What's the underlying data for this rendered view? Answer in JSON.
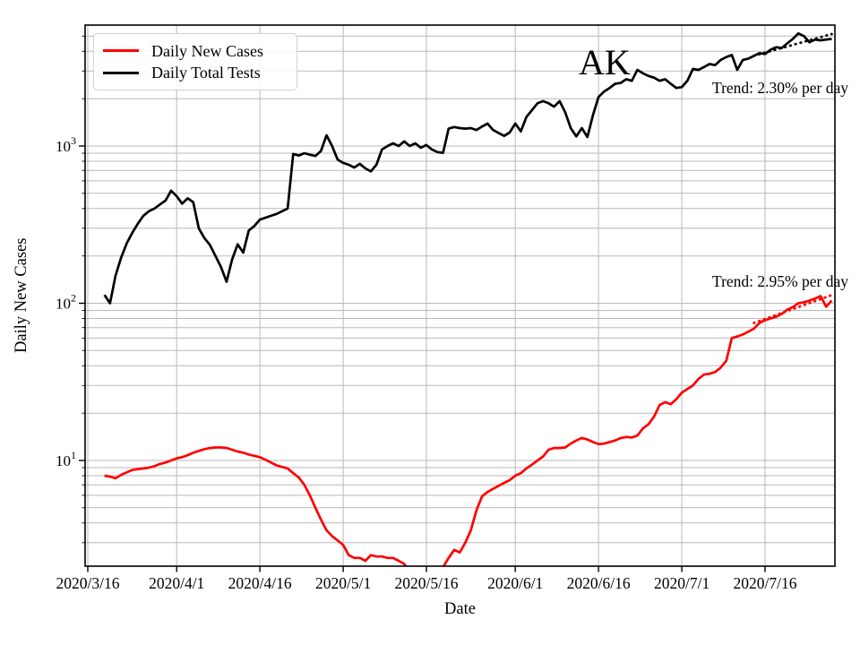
{
  "figure": {
    "title": "AK",
    "annotations": {
      "trend_tests": "Trend: 2.30% per day",
      "trend_cases": "Trend: 2.95% per day"
    },
    "legend": {
      "items": [
        {
          "label": "Daily New Cases",
          "color": "#ff0000"
        },
        {
          "label": "Daily Total Tests",
          "color": "#000000"
        }
      ]
    }
  },
  "colors": {
    "cases": "#ff0000",
    "tests": "#000000",
    "grid": "#b9b9b9",
    "axis": "#000000",
    "legend_border": "#d2d2d2"
  },
  "chart_data": {
    "type": "line",
    "title": "AK",
    "xlabel": "Date",
    "ylabel": "Daily New Cases",
    "y_scale": "log",
    "ylim": [
      2.1,
      5900
    ],
    "grid": true,
    "legend_position": "upper left",
    "x_tick_labels": [
      "2020/3/16",
      "2020/4/1",
      "2020/4/16",
      "2020/5/1",
      "2020/5/16",
      "2020/6/1",
      "2020/6/16",
      "2020/7/1",
      "2020/7/16"
    ],
    "y_tick_labels": [
      "10^1",
      "10^2",
      "10^3"
    ],
    "start_date": "2020/3/19",
    "end_date": "2020/7/28",
    "frequency": "daily",
    "series": [
      {
        "name": "Daily New Cases",
        "color": "#ff0000",
        "values": [
          8.0,
          7.9,
          7.7,
          8.1,
          8.4,
          8.7,
          8.8,
          8.9,
          9.0,
          9.2,
          9.5,
          9.7,
          10.0,
          10.3,
          10.5,
          10.8,
          11.2,
          11.5,
          11.8,
          12.0,
          12.1,
          12.1,
          12.0,
          11.7,
          11.4,
          11.2,
          10.9,
          10.7,
          10.5,
          10.1,
          9.7,
          9.3,
          9.1,
          8.9,
          8.3,
          7.8,
          7.0,
          6.0,
          5.0,
          4.2,
          3.6,
          3.3,
          3.1,
          2.9,
          2.5,
          2.4,
          2.4,
          2.3,
          2.5,
          2.45,
          2.45,
          2.4,
          2.4,
          2.3,
          2.2,
          1.9,
          null,
          null,
          null,
          null,
          1.85,
          2.1,
          2.4,
          2.7,
          2.6,
          3.0,
          3.6,
          4.8,
          5.9,
          6.3,
          6.6,
          6.9,
          7.2,
          7.5,
          8.0,
          8.3,
          8.9,
          9.4,
          10.0,
          10.6,
          11.7,
          12.0,
          12.0,
          12.1,
          12.8,
          13.4,
          13.9,
          13.6,
          13.1,
          12.7,
          12.8,
          13.1,
          13.4,
          13.9,
          14.1,
          14.0,
          14.4,
          16.0,
          17.0,
          19.0,
          22.5,
          23.5,
          22.8,
          24.5,
          27,
          28.5,
          30,
          33,
          35.2,
          35.6,
          36.5,
          39,
          43,
          60,
          61.5,
          63.3,
          66,
          69,
          75,
          78,
          80,
          82,
          85.5,
          91,
          94.5,
          100,
          101.5,
          104,
          107,
          111,
          95,
          104
        ]
      },
      {
        "name": "Daily Total Tests",
        "color": "#000000",
        "values": [
          113,
          100,
          150,
          195,
          240,
          280,
          320,
          360,
          385,
          400,
          425,
          450,
          520,
          480,
          430,
          465,
          440,
          300,
          260,
          235,
          200,
          170,
          137,
          190,
          237,
          210,
          290,
          310,
          340,
          350,
          360,
          370,
          385,
          400,
          890,
          870,
          900,
          880,
          865,
          930,
          1170,
          1000,
          820,
          780,
          760,
          730,
          770,
          720,
          690,
          760,
          950,
          1000,
          1040,
          1000,
          1070,
          1000,
          1040,
          975,
          1015,
          950,
          915,
          905,
          1290,
          1320,
          1300,
          1290,
          1300,
          1265,
          1330,
          1390,
          1265,
          1210,
          1160,
          1220,
          1390,
          1240,
          1530,
          1690,
          1870,
          1930,
          1870,
          1780,
          1930,
          1640,
          1300,
          1150,
          1300,
          1140,
          1570,
          2050,
          2220,
          2340,
          2490,
          2520,
          2660,
          2600,
          3050,
          2900,
          2790,
          2720,
          2600,
          2660,
          2490,
          2340,
          2370,
          2600,
          3090,
          3050,
          3180,
          3320,
          3270,
          3530,
          3680,
          3790,
          3050,
          3530,
          3600,
          3750,
          3900,
          3850,
          4100,
          4250,
          4200,
          4500,
          4800,
          5200,
          5000,
          4570,
          4750,
          4700,
          4750,
          4800
        ]
      }
    ],
    "trend_lines": [
      {
        "series": "Daily Total Tests",
        "label": "Trend: 2.30% per day",
        "pct_per_day": 2.3,
        "start_date": "2020/7/14",
        "end_date": "2020/7/28",
        "start_value": 3750,
        "style": "dotted",
        "color": "#000000"
      },
      {
        "series": "Daily New Cases",
        "label": "Trend: 2.95% per day",
        "pct_per_day": 2.95,
        "start_date": "2020/7/14",
        "end_date": "2020/7/28",
        "start_value": 75,
        "style": "dotted",
        "color": "#ff0000"
      }
    ]
  }
}
